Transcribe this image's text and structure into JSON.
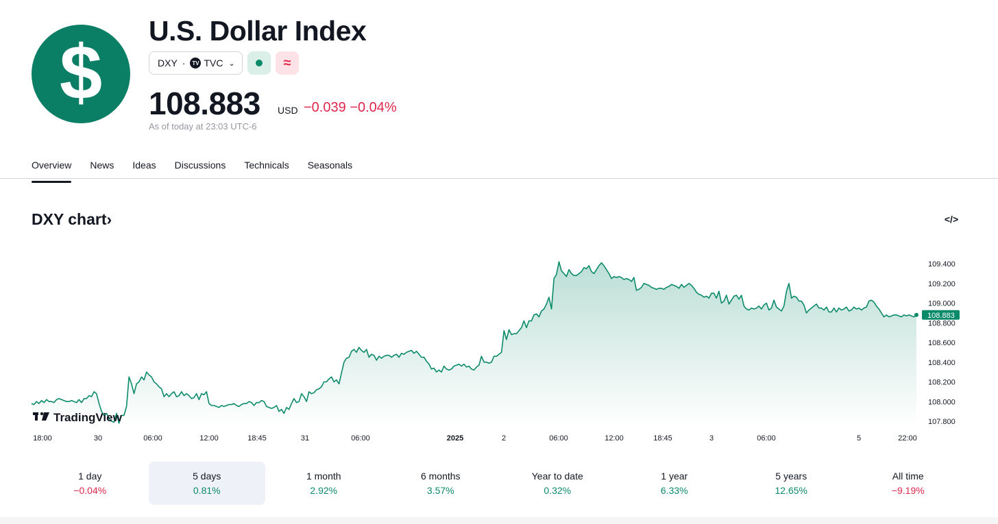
{
  "header": {
    "logo_symbol": "$",
    "title": "U.S. Dollar Index",
    "ticker": "DXY",
    "exchange": "TVC",
    "exchange_badge": "TV",
    "status_icon": "market-status-dot-icon",
    "approx_symbol": "≈"
  },
  "quote": {
    "price": "108.883",
    "currency": "USD",
    "change": "−0.039",
    "change_pct": "−0.04%",
    "as_of": "As of today at 23:03 UTC-6"
  },
  "tabs": [
    "Overview",
    "News",
    "Ideas",
    "Discussions",
    "Technicals",
    "Seasonals"
  ],
  "active_tab": "Overview",
  "chart_section": {
    "title": "DXY chart",
    "title_chevron": "›",
    "embed_icon": "</>",
    "watermark": "TradingView"
  },
  "chart_data": {
    "type": "area",
    "line_color": "#0b8a6a",
    "fill": "gradient #0b8a6a → transparent",
    "y_ticks": [
      "107.800",
      "108.000",
      "108.200",
      "108.400",
      "108.600",
      "108.800",
      "109.000",
      "109.200",
      "109.400"
    ],
    "ylim": [
      107.75,
      109.5
    ],
    "current_value": "108.883",
    "x_ticks": [
      "18:00",
      "30",
      "06:00",
      "12:00",
      "18:45",
      "31",
      "06:00",
      "2025",
      "2",
      "06:00",
      "12:00",
      "18:45",
      "3",
      "06:00",
      "5",
      "22:00"
    ],
    "x_tick_bold": "2025",
    "series": [
      {
        "values": [
          107.98,
          107.97,
          108.0,
          107.98,
          108.01,
          107.99,
          108.02,
          108.0,
          108.0,
          107.99,
          108.02,
          108.03,
          108.02,
          108.01,
          108.0,
          108.0,
          108.01,
          108.0,
          107.99,
          108.02,
          107.99,
          108.03,
          108.03,
          108.06,
          108.05,
          108.1,
          108.08,
          107.98,
          107.9,
          107.86,
          107.88,
          107.83,
          107.8,
          107.79,
          107.88,
          107.78,
          107.86,
          107.86,
          107.95,
          108.25,
          108.18,
          108.08,
          108.18,
          108.2,
          108.25,
          108.22,
          108.3,
          108.27,
          108.25,
          108.2,
          108.18,
          108.15,
          108.13,
          108.05,
          108.08,
          108.05,
          108.08,
          108.1,
          108.05,
          108.06,
          108.1,
          108.06,
          108.08,
          108.06,
          108.03,
          108.04,
          108.08,
          108.02,
          108.08,
          108.07,
          108.1,
          107.98,
          107.96,
          107.96,
          107.95,
          107.94,
          107.96,
          107.95,
          107.96,
          107.97,
          107.97,
          107.98,
          107.96,
          107.95,
          107.97,
          107.98,
          107.98,
          108.0,
          107.99,
          107.96,
          107.99,
          107.99,
          108.01,
          108.0,
          107.95,
          107.94,
          107.93,
          107.94,
          107.96,
          107.9,
          107.92,
          107.88,
          107.94,
          107.92,
          107.98,
          108.03,
          107.99,
          108.0,
          108.08,
          108.05,
          108.0,
          108.1,
          108.08,
          108.09,
          108.12,
          108.13,
          108.15,
          108.2,
          108.2,
          108.23,
          108.25,
          108.2,
          108.22,
          108.18,
          108.29,
          108.4,
          108.44,
          108.45,
          108.51,
          108.53,
          108.5,
          108.55,
          108.52,
          108.5,
          108.53,
          108.45,
          108.48,
          108.47,
          108.42,
          108.46,
          108.44,
          108.46,
          108.47,
          108.47,
          108.45,
          108.47,
          108.48,
          108.45,
          108.49,
          108.48,
          108.5,
          108.51,
          108.52,
          108.49,
          108.51,
          108.48,
          108.45,
          108.45,
          108.41,
          108.38,
          108.33,
          108.34,
          108.3,
          108.32,
          108.3,
          108.36,
          108.33,
          108.32,
          108.33,
          108.36,
          108.37,
          108.38,
          108.36,
          108.38,
          108.35,
          108.36,
          108.33,
          108.32,
          108.35,
          108.37,
          108.46,
          108.4,
          108.4,
          108.39,
          108.4,
          108.46,
          108.46,
          108.48,
          108.5,
          108.72,
          108.63,
          108.73,
          108.68,
          108.69,
          108.69,
          108.72,
          108.75,
          108.82,
          108.75,
          108.82,
          108.82,
          108.88,
          108.89,
          108.86,
          108.92,
          108.94,
          108.99,
          109.06,
          108.94,
          109.25,
          109.29,
          109.42,
          109.33,
          109.3,
          109.27,
          109.34,
          109.3,
          109.28,
          109.28,
          109.3,
          109.32,
          109.36,
          109.35,
          109.38,
          109.32,
          109.3,
          109.34,
          109.38,
          109.41,
          109.38,
          109.34,
          109.3,
          109.25,
          109.27,
          109.26,
          109.27,
          109.26,
          109.24,
          109.25,
          109.24,
          109.22,
          109.26,
          109.13,
          109.14,
          109.16,
          109.2,
          109.19,
          109.18,
          109.16,
          109.15,
          109.14,
          109.15,
          109.15,
          109.14,
          109.16,
          109.17,
          109.19,
          109.18,
          109.17,
          109.15,
          109.19,
          109.16,
          109.18,
          109.2,
          109.18,
          109.15,
          109.11,
          109.09,
          109.08,
          109.06,
          109.07,
          109.05,
          109.1,
          109.1,
          109.05,
          109.12,
          109.0,
          109.02,
          109.08,
          108.99,
          109.03,
          109.07,
          109.08,
          109.04,
          109.08,
          108.97,
          108.94,
          108.93,
          108.95,
          108.94,
          108.95,
          108.97,
          108.94,
          108.98,
          109.0,
          108.93,
          108.95,
          109.03,
          108.96,
          108.94,
          108.92,
          108.97,
          109.12,
          109.2,
          109.05,
          109.07,
          109.06,
          109.02,
          109.02,
          108.98,
          108.9,
          108.93,
          108.95,
          108.97,
          108.99,
          108.95,
          108.95,
          108.93,
          108.96,
          108.91,
          108.91,
          108.95,
          108.91,
          108.95,
          108.93,
          108.94,
          108.96,
          108.92,
          108.93,
          108.96,
          108.94,
          108.95,
          108.93,
          108.95,
          108.96,
          109.02,
          109.03,
          109.01,
          108.97,
          108.94,
          108.9,
          108.86,
          108.88,
          108.86,
          108.87,
          108.88,
          108.88,
          108.87,
          108.86,
          108.88,
          108.87,
          108.88,
          108.87,
          108.86,
          108.88
        ]
      }
    ]
  },
  "periods": [
    {
      "label": "1 day",
      "value": "−0.04%",
      "trend": "neg"
    },
    {
      "label": "5 days",
      "value": "0.81%",
      "trend": "pos"
    },
    {
      "label": "1 month",
      "value": "2.92%",
      "trend": "pos"
    },
    {
      "label": "6 months",
      "value": "3.57%",
      "trend": "pos"
    },
    {
      "label": "Year to date",
      "value": "0.32%",
      "trend": "pos"
    },
    {
      "label": "1 year",
      "value": "6.33%",
      "trend": "pos"
    },
    {
      "label": "5 years",
      "value": "12.65%",
      "trend": "pos"
    },
    {
      "label": "All time",
      "value": "−9.19%",
      "trend": "neg"
    }
  ],
  "active_period": "5 days",
  "colors": {
    "accent": "#0b8a6a",
    "negative": "#e0264a",
    "logo_bg": "#0b7f66",
    "text": "#131722",
    "muted": "#9598a1"
  }
}
